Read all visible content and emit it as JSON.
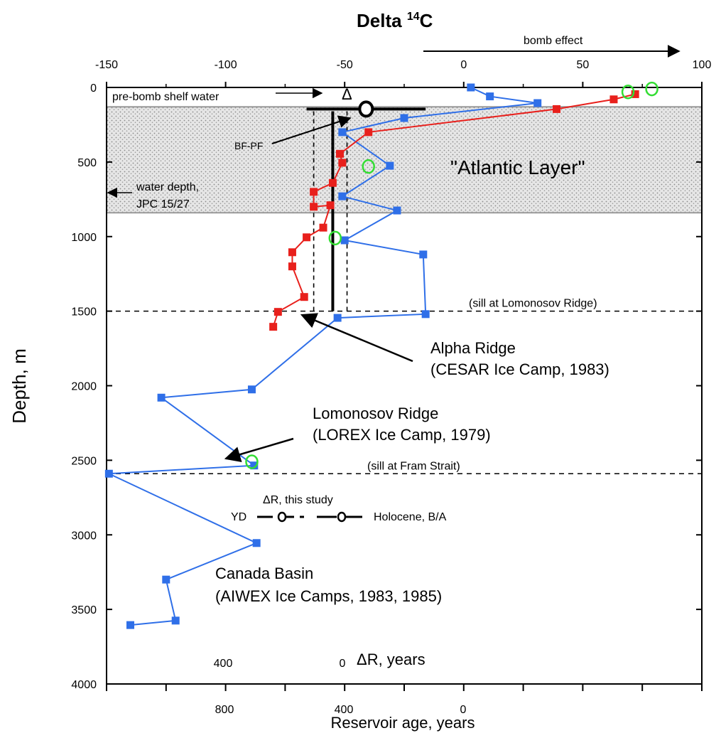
{
  "chart_data": {
    "type": "line",
    "title": "Delta",
    "title_sup": "14",
    "title_suffix": "C",
    "x_top": {
      "min": -150,
      "max": 100,
      "ticks": [
        -150,
        -100,
        -50,
        0,
        50,
        100
      ]
    },
    "y": {
      "label": "Depth, m",
      "min": 0,
      "max": 4000,
      "reversed": true,
      "ticks": [
        0,
        500,
        1000,
        1500,
        2000,
        2500,
        3000,
        3500,
        4000
      ]
    },
    "x_bottom": {
      "label": "Reservoir age, years",
      "ticks": [
        800,
        400,
        0
      ],
      "note": "ΔR, years",
      "note_ticks": [
        400,
        0
      ]
    },
    "atlantic_layer": {
      "label": "\"Atlantic Layer\"",
      "depth_range": [
        130,
        840
      ]
    },
    "series": [
      {
        "color": "#2f6fe8",
        "points": [
          [
            3,
            0
          ],
          [
            11,
            60
          ],
          [
            31,
            105
          ],
          [
            -25,
            205
          ],
          [
            -51,
            300
          ],
          [
            -31,
            525
          ],
          [
            -51,
            730
          ],
          [
            -28,
            825
          ],
          [
            -50,
            1025
          ],
          [
            -17,
            1120
          ],
          [
            -16,
            1520
          ],
          [
            -53,
            1545
          ],
          [
            -89,
            2025
          ],
          [
            -127,
            2080
          ],
          [
            -88,
            2535
          ],
          [
            -149,
            2590
          ],
          [
            -87,
            3055
          ],
          [
            -125,
            3300
          ],
          [
            -121,
            3575
          ],
          [
            -140,
            3605
          ]
        ]
      },
      {
        "color": "#e8201c",
        "points": [
          [
            72,
            45
          ],
          [
            63,
            80
          ],
          [
            39,
            145
          ],
          [
            -40,
            300
          ],
          [
            -52,
            445
          ],
          [
            -51,
            505
          ],
          [
            -55,
            640
          ],
          [
            -63,
            700
          ],
          [
            -63,
            800
          ],
          [
            -56,
            790
          ],
          [
            -59,
            940
          ],
          [
            -66,
            1005
          ],
          [
            -72,
            1105
          ],
          [
            -72,
            1200
          ],
          [
            -67,
            1405
          ],
          [
            -78,
            1505
          ],
          [
            -80,
            1605
          ]
        ]
      },
      {
        "color": "#33dd33",
        "marker": "open-circle",
        "points": [
          [
            79,
            10
          ],
          [
            69,
            30
          ],
          [
            -40,
            530
          ],
          [
            -54,
            1010
          ],
          [
            -89,
            2510
          ]
        ]
      }
    ],
    "delta_marker": {
      "center_x": -41,
      "depth": 145,
      "range": [
        -66,
        -16
      ],
      "label": "Δ"
    },
    "vertical_lines": {
      "solid_x": -55,
      "dashed_x": [
        -63,
        -49
      ],
      "depth_range": [
        160,
        1500
      ]
    },
    "sills": [
      {
        "depth": 1500,
        "label": "(sill at Lomonosov Ridge)"
      },
      {
        "depth": 2590,
        "label": "(sill at Fram Strait)"
      }
    ],
    "annotations": {
      "bomb_effect": "bomb  effect",
      "pre_bomb": "pre-bomb shelf water",
      "bf_pf": "BF-PF",
      "water_depth_1": "water  depth,",
      "water_depth_2": "JPC 15/27",
      "alpha_1": "Alpha Ridge",
      "alpha_2": "(CESAR Ice Camp, 1983)",
      "lomonosov_1": "Lomonosov  Ridge",
      "lomonosov_2": "(LOREX Ice Camp, 1979)",
      "canada_1": "Canada Basin",
      "canada_2": "(AIWEX Ice Camps, 1983, 1985)",
      "delta_r_study": "ΔR, this study",
      "yd": "YD",
      "holocene": "Holocene, B/A"
    }
  }
}
